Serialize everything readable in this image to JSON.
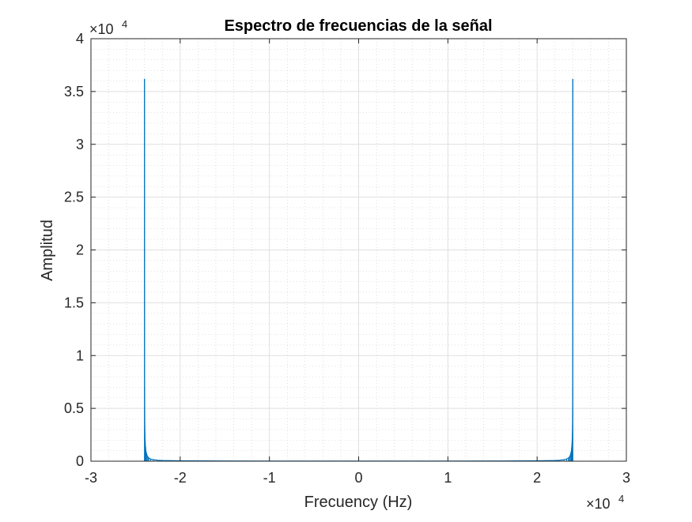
{
  "chart_data": {
    "type": "line",
    "title": "Espectro de frecuencias de la señal",
    "xlabel": "Frecuency (Hz)",
    "ylabel": "Amplitud",
    "x_multiplier": {
      "base": "×10",
      "exponent": "4"
    },
    "y_multiplier": {
      "base": "×10",
      "exponent": "4"
    },
    "xlim": [
      -30000,
      30000
    ],
    "ylim": [
      0,
      40000
    ],
    "x_ticks": [
      -30000,
      -20000,
      -10000,
      0,
      10000,
      20000,
      30000
    ],
    "x_tick_labels": [
      "-3",
      "-2",
      "-1",
      "0",
      "1",
      "2",
      "3"
    ],
    "y_ticks": [
      0,
      5000,
      10000,
      15000,
      20000,
      25000,
      30000,
      35000,
      40000
    ],
    "y_tick_labels": [
      "0",
      "0.5",
      "1",
      "1.5",
      "2",
      "2.5",
      "3",
      "3.5",
      "4"
    ],
    "grid": true,
    "minor_grid": true,
    "color": "#0072BD",
    "series": [
      {
        "x": [
          -24000,
          -23990,
          -23970,
          -23940,
          -23900,
          -23850,
          -23800,
          -23700,
          -23600,
          -23500,
          -23300,
          -23000,
          -22500,
          -22000,
          -20000,
          -15000,
          -10000,
          -5000,
          0,
          5000,
          10000,
          15000,
          20000,
          22000,
          22500,
          23000,
          23300,
          23500,
          23600,
          23700,
          23800,
          23850,
          23900,
          23940,
          23970,
          23990,
          24000
        ],
        "y": [
          36200,
          7000,
          3500,
          2200,
          1500,
          1050,
          800,
          520,
          380,
          290,
          200,
          140,
          90,
          65,
          35,
          20,
          15,
          12,
          10,
          12,
          15,
          20,
          35,
          65,
          90,
          140,
          200,
          290,
          380,
          520,
          800,
          1050,
          1500,
          2200,
          3500,
          7000,
          36200
        ]
      }
    ]
  }
}
